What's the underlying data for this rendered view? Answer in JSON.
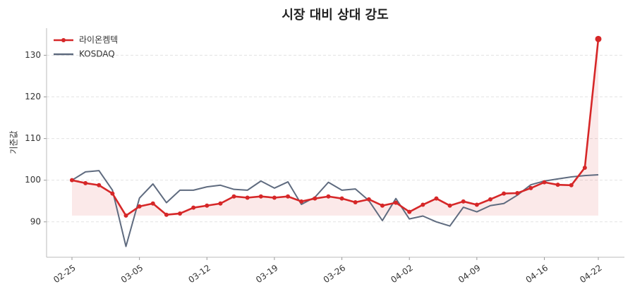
{
  "chart_data": {
    "type": "line",
    "title": "시장 대비 상대 강도",
    "ylabel": "기준값",
    "categories": [
      "02-25",
      null,
      null,
      null,
      null,
      "03-05",
      null,
      null,
      null,
      null,
      "03-12",
      null,
      null,
      null,
      null,
      "03-19",
      null,
      null,
      null,
      null,
      "03-26",
      null,
      null,
      null,
      null,
      "04-02",
      null,
      null,
      null,
      null,
      "04-09",
      null,
      null,
      null,
      null,
      "04-16",
      null,
      null,
      null,
      "04-22"
    ],
    "series": [
      {
        "name": "라이온켐텍",
        "color": "#d62728",
        "values": [
          100.0,
          99.3,
          98.8,
          96.8,
          91.5,
          93.7,
          94.4,
          91.7,
          92.0,
          93.4,
          93.9,
          94.4,
          96.1,
          95.8,
          96.1,
          95.8,
          96.1,
          94.9,
          95.6,
          96.1,
          95.6,
          94.7,
          95.4,
          93.9,
          94.6,
          92.4,
          94.1,
          95.6,
          93.9,
          94.9,
          94.1,
          95.4,
          96.8,
          96.9,
          98.1,
          99.5,
          98.9,
          98.8,
          103.0,
          133.9
        ]
      },
      {
        "name": "KOSDAQ",
        "color": "#5f6b7f",
        "values": [
          100.0,
          102.0,
          102.3,
          97.6,
          84.1,
          95.7,
          99.1,
          94.6,
          97.6,
          97.6,
          98.4,
          98.8,
          97.8,
          97.6,
          99.8,
          98.1,
          99.6,
          94.2,
          95.9,
          99.5,
          97.6,
          97.9,
          95.1,
          90.3,
          95.6,
          90.7,
          91.4,
          90.0,
          89.0,
          93.5,
          92.4,
          93.9,
          94.4,
          96.4,
          98.9,
          99.8,
          100.3,
          100.8,
          101.1,
          101.3
        ]
      }
    ],
    "ylim": [
      81.5,
      136.5
    ],
    "yticks": [
      90,
      100,
      110,
      120,
      130
    ],
    "grid": true,
    "legend": "upper-left"
  }
}
